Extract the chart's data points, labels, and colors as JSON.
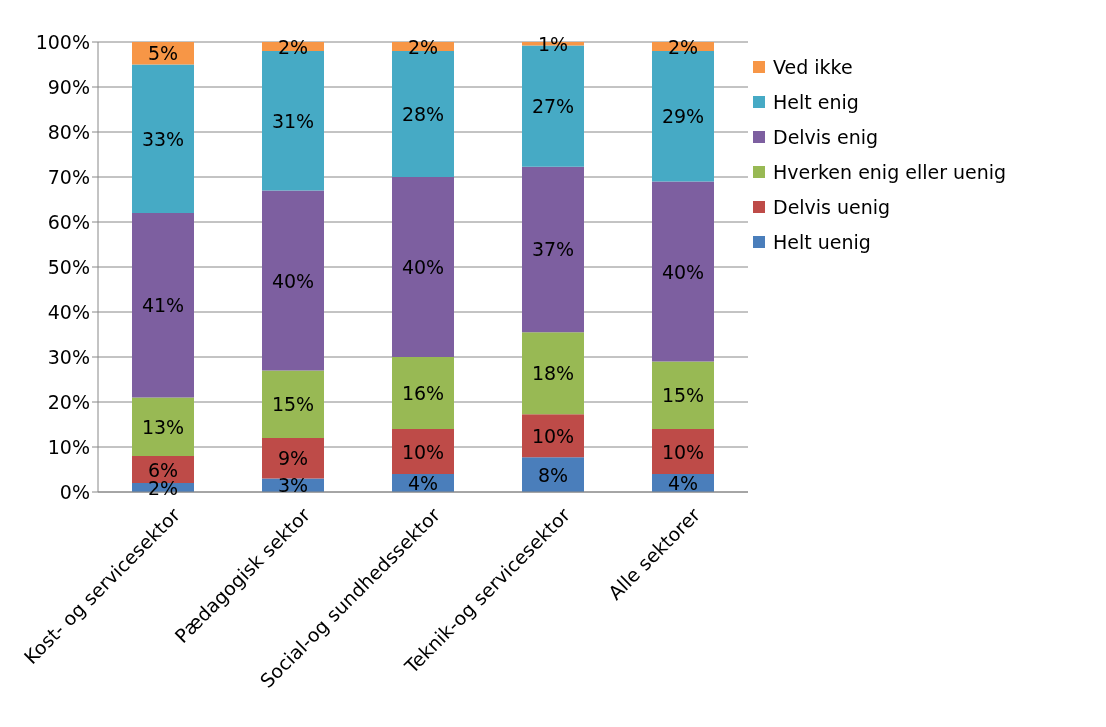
{
  "chart_data": {
    "type": "bar",
    "stacked": true,
    "categories": [
      "Kost- og servicesektor",
      "Pædagogisk sektor",
      "Social-og sundhedssektor",
      "Teknik-og servicesektor",
      "Alle sektorer"
    ],
    "series": [
      {
        "name": "Helt uenig",
        "color": "#4a7ebb",
        "values": [
          2,
          3,
          4,
          7.7,
          4
        ],
        "value_labels": [
          "2%",
          "3%",
          "4%",
          "8%",
          "4%"
        ]
      },
      {
        "name": "Delvis uenig",
        "color": "#be4b48",
        "values": [
          6,
          9,
          10,
          9.6,
          10
        ],
        "value_labels": [
          "6%",
          "9%",
          "10%",
          "10%",
          "10%"
        ]
      },
      {
        "name": "Hverken enig eller uenig",
        "color": "#98b954",
        "values": [
          13,
          15,
          16,
          18.2,
          15
        ],
        "value_labels": [
          "13%",
          "15%",
          "16%",
          "18%",
          "15%"
        ]
      },
      {
        "name": "Delvis enig",
        "color": "#7d5fa0",
        "values": [
          41,
          40,
          40,
          36.8,
          40
        ],
        "value_labels": [
          "41%",
          "40%",
          "40%",
          "37%",
          "40%"
        ]
      },
      {
        "name": "Helt enig",
        "color": "#46aac5",
        "values": [
          33,
          31,
          28,
          26.9,
          29
        ],
        "value_labels": [
          "33%",
          "31%",
          "28%",
          "27%",
          "29%"
        ]
      },
      {
        "name": "Ved ikke",
        "color": "#f79646",
        "values": [
          5,
          2,
          2,
          0.8,
          2
        ],
        "value_labels": [
          "5%",
          "2%",
          "2%",
          "1%",
          "2%"
        ]
      }
    ],
    "ylim": [
      0,
      100
    ],
    "yticks": [
      {
        "value": 0,
        "label": "0%"
      },
      {
        "value": 10,
        "label": "10%"
      },
      {
        "value": 20,
        "label": "20%"
      },
      {
        "value": 30,
        "label": "30%"
      },
      {
        "value": 40,
        "label": "40%"
      },
      {
        "value": 50,
        "label": "50%"
      },
      {
        "value": 60,
        "label": "60%"
      },
      {
        "value": 70,
        "label": "70%"
      },
      {
        "value": 80,
        "label": "80%"
      },
      {
        "value": 90,
        "label": "90%"
      },
      {
        "value": 100,
        "label": "100%"
      }
    ],
    "grid": "y",
    "legend": "right"
  }
}
